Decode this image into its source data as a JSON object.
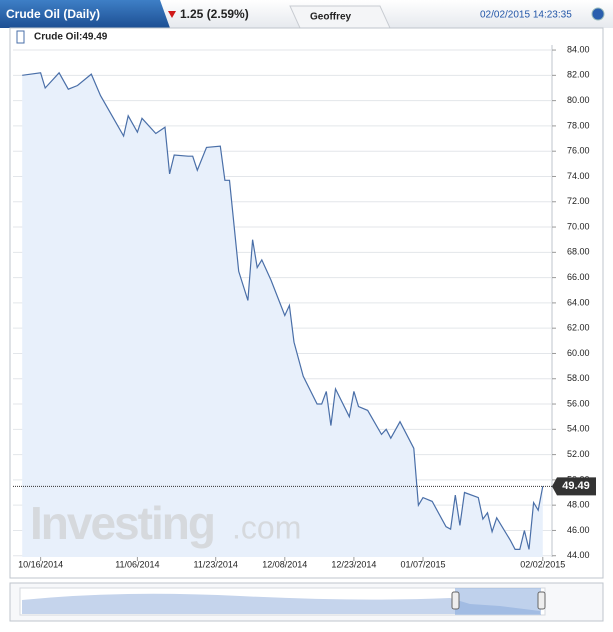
{
  "header": {
    "title": "Crude Oil (Daily)",
    "change": "1.25 (2.59%)",
    "user": "Geoffrey",
    "timestamp": "02/02/2015 14:23:35"
  },
  "watermark": [
    "Investing",
    ".com"
  ],
  "chart_data": {
    "type": "line",
    "x": [
      "10/12/2014",
      "10/16/2014",
      "10/17/2014",
      "10/20/2014",
      "10/22/2014",
      "10/24/2014",
      "10/27/2014",
      "10/29/2014",
      "11/03/2014",
      "11/04/2014",
      "11/06/2014",
      "11/07/2014",
      "11/10/2014",
      "11/12/2014",
      "11/13/2014",
      "11/14/2014",
      "11/17/2014",
      "11/18/2014",
      "11/19/2014",
      "11/21/2014",
      "11/24/2014",
      "11/25/2014",
      "11/26/2014",
      "11/28/2014",
      "11/30/2014",
      "12/01/2014",
      "12/02/2014",
      "12/03/2014",
      "12/05/2014",
      "12/08/2014",
      "12/09/2014",
      "12/10/2014",
      "12/12/2014",
      "12/15/2014",
      "12/16/2014",
      "12/17/2014",
      "12/18/2014",
      "12/19/2014",
      "12/22/2014",
      "12/23/2014",
      "12/24/2014",
      "12/26/2014",
      "12/29/2014",
      "12/30/2014",
      "12/31/2014",
      "01/02/2015",
      "01/05/2015",
      "01/06/2015",
      "01/07/2015",
      "01/09/2015",
      "01/12/2015",
      "01/13/2015",
      "01/14/2015",
      "01/15/2015",
      "01/16/2015",
      "01/19/2015",
      "01/20/2015",
      "01/21/2015",
      "01/22/2015",
      "01/23/2015",
      "01/26/2015",
      "01/27/2015",
      "01/28/2015",
      "01/29/2015",
      "01/30/2015",
      "01/31/2015",
      "02/01/2015",
      "02/02/2015"
    ],
    "series": [
      {
        "name": "Crude Oil:49.49",
        "color": "#4a6fa8",
        "values": [
          82.0,
          82.2,
          81.0,
          82.2,
          80.9,
          81.2,
          82.1,
          80.4,
          77.2,
          78.8,
          77.5,
          78.6,
          77.4,
          77.9,
          74.2,
          75.7,
          75.6,
          75.6,
          74.5,
          76.3,
          76.4,
          73.7,
          73.7,
          66.5,
          64.2,
          69.0,
          66.8,
          67.4,
          65.8,
          63.0,
          63.8,
          60.9,
          58.2,
          56.0,
          56.0,
          57.0,
          54.3,
          57.2,
          55.0,
          57.0,
          55.8,
          55.5,
          53.6,
          54.0,
          53.3,
          54.6,
          52.5,
          48.0,
          48.6,
          48.3,
          46.3,
          46.1,
          48.8,
          46.4,
          49.0,
          48.6,
          46.9,
          47.4,
          45.9,
          47.0,
          45.2,
          44.5,
          44.5,
          46.0,
          44.5,
          48.2,
          47.6,
          49.49
        ]
      }
    ],
    "xlim": [
      "10/10/2014",
      "02/04/2015"
    ],
    "xticks": [
      "10/16/2014",
      "11/06/2014",
      "11/23/2014",
      "12/08/2014",
      "12/23/2014",
      "01/07/2015",
      "02/02/2015"
    ],
    "ylim": [
      43.9,
      84.4
    ],
    "yticks": [
      {
        "value": 44,
        "label": "44.00"
      },
      {
        "value": 46,
        "label": "46.00"
      },
      {
        "value": 48,
        "label": "48.00"
      },
      {
        "value": 50,
        "label": "50.00"
      },
      {
        "value": 52,
        "label": "52.00"
      },
      {
        "value": 54,
        "label": "54.00"
      },
      {
        "value": 56,
        "label": "56.00"
      },
      {
        "value": 58,
        "label": "58.00"
      },
      {
        "value": 60,
        "label": "60.00"
      },
      {
        "value": 62,
        "label": "62.00"
      },
      {
        "value": 64,
        "label": "64.00"
      },
      {
        "value": 66,
        "label": "66.00"
      },
      {
        "value": 68,
        "label": "68.00"
      },
      {
        "value": 70,
        "label": "70.00"
      },
      {
        "value": 72,
        "label": "72.00"
      },
      {
        "value": 74,
        "label": "74.00"
      },
      {
        "value": 76,
        "label": "76.00"
      },
      {
        "value": 78,
        "label": "78.00"
      },
      {
        "value": 80,
        "label": "80.00"
      },
      {
        "value": 82,
        "label": "82.00"
      },
      {
        "value": 84,
        "label": "84.00"
      }
    ],
    "grid": true
  }
}
